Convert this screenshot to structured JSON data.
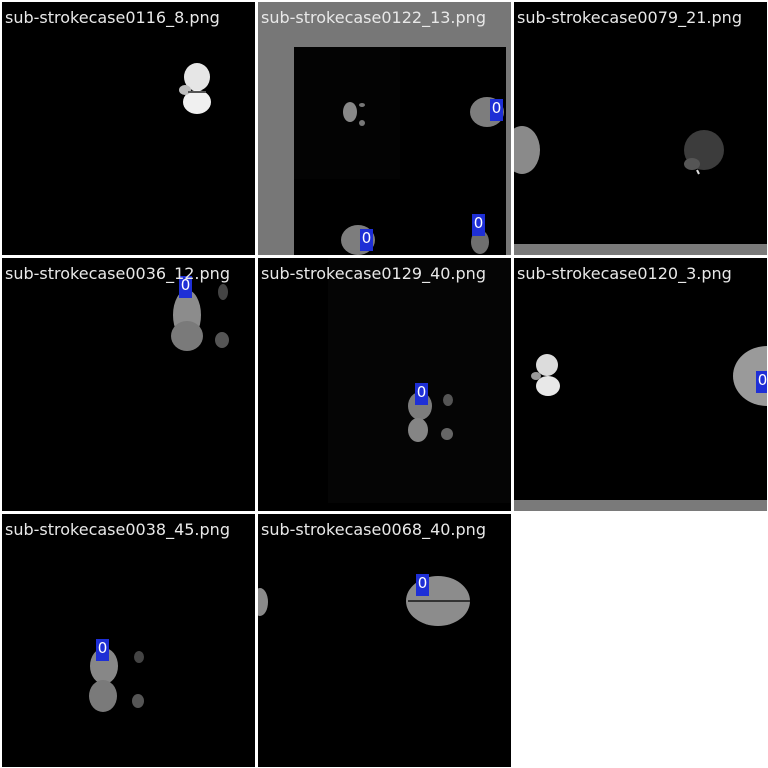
{
  "tiles": [
    {
      "filename": "sub-strokecase0116_8.png",
      "labels": []
    },
    {
      "filename": "sub-strokecase0122_13.png",
      "labels": [
        "0",
        "0",
        "0"
      ]
    },
    {
      "filename": "sub-strokecase0079_21.png",
      "labels": []
    },
    {
      "filename": "sub-strokecase0036_12.png",
      "labels": [
        "0"
      ]
    },
    {
      "filename": "sub-strokecase0129_40.png",
      "labels": [
        "0"
      ]
    },
    {
      "filename": "sub-strokecase0120_3.png",
      "labels": [
        "0"
      ]
    },
    {
      "filename": "sub-strokecase0038_45.png",
      "labels": [
        "0"
      ]
    },
    {
      "filename": "sub-strokecase0068_40.png",
      "labels": [
        "0"
      ]
    }
  ],
  "colors": {
    "label_box": "#1e2fd6",
    "tile_bg": "#000000",
    "grid_gap": "#ffffff"
  }
}
